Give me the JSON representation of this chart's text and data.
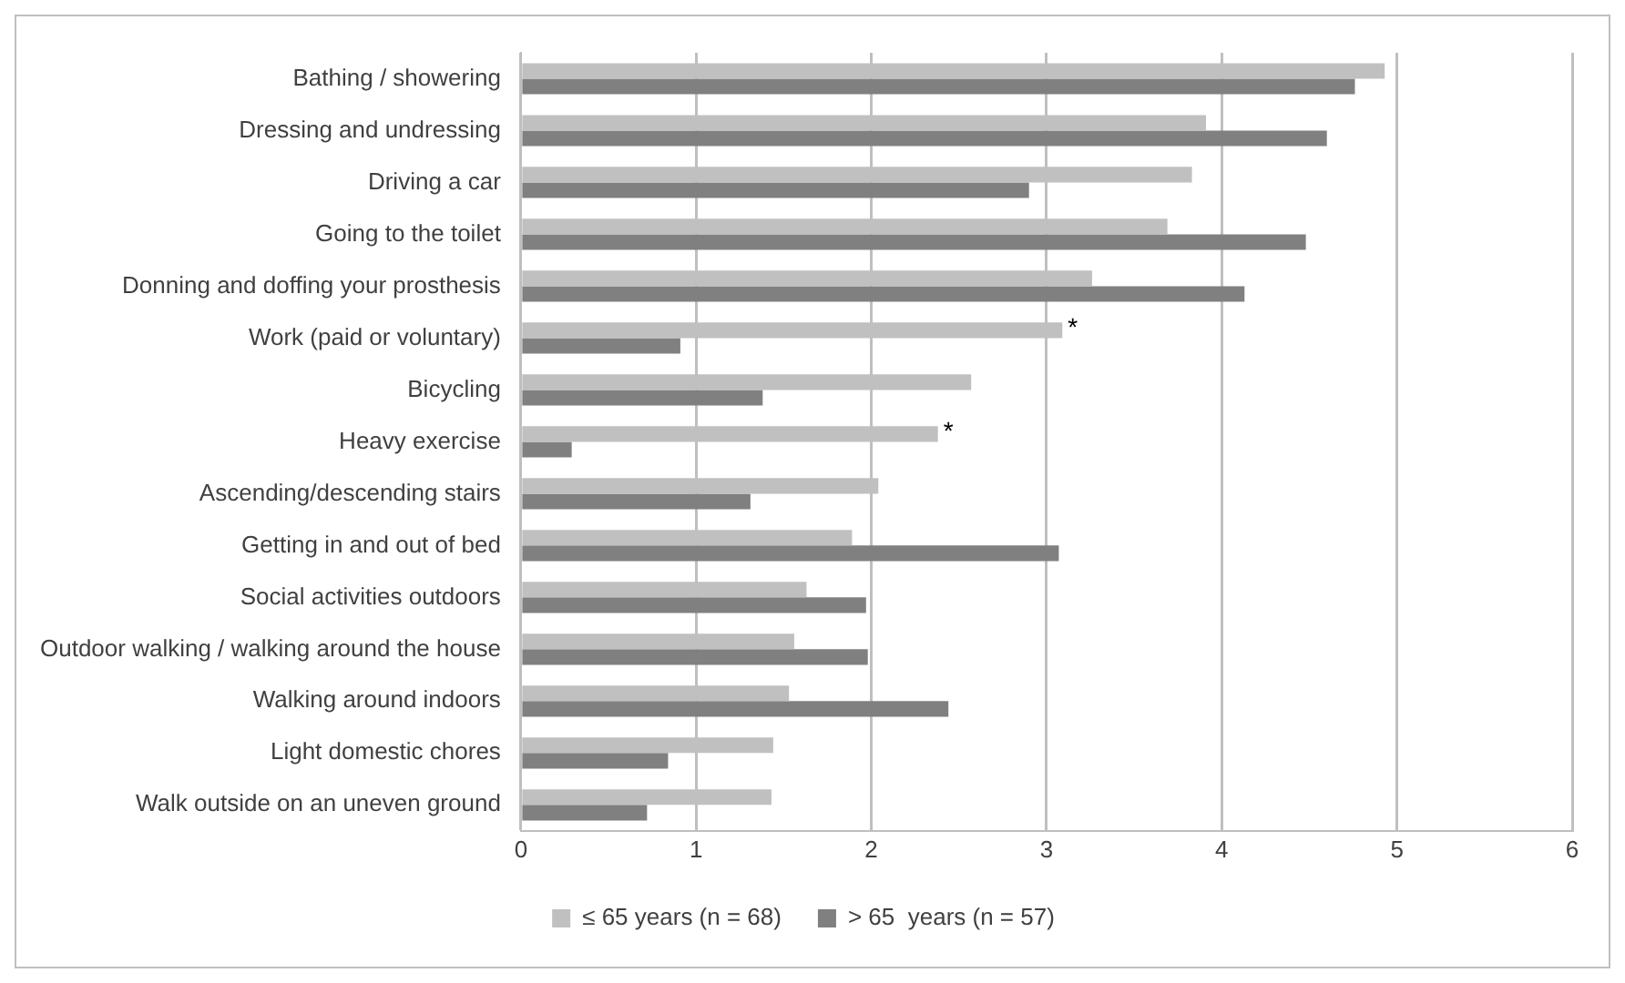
{
  "chart_data": {
    "type": "bar",
    "orientation": "horizontal",
    "categories": [
      "Bathing / showering",
      "Dressing and undressing",
      "Driving a car",
      "Going to the toilet",
      "Donning and doffing your prosthesis",
      "Work (paid or voluntary)",
      "Bicycling",
      "Heavy exercise",
      "Ascending/descending stairs",
      "Getting in and out of bed",
      "Social activities outdoors",
      "Outdoor walking / walking around the house",
      "Walking around indoors",
      "Light domestic chores",
      "Walk outside on an uneven ground"
    ],
    "series": [
      {
        "name": "≤ 65 years (n = 68)",
        "color": "#c0c0c0",
        "values": [
          4.93,
          3.91,
          3.83,
          3.69,
          3.26,
          3.09,
          2.57,
          2.38,
          2.04,
          1.89,
          1.63,
          1.56,
          1.53,
          1.44,
          1.43
        ]
      },
      {
        "name": "> 65  years (n = 57)",
        "color": "#808080",
        "values": [
          4.76,
          4.6,
          2.9,
          4.48,
          4.13,
          0.91,
          1.38,
          0.29,
          1.31,
          3.07,
          1.97,
          1.98,
          2.44,
          0.84,
          0.72
        ]
      }
    ],
    "xlim": [
      0,
      6
    ],
    "xticks": [
      0,
      1,
      2,
      3,
      4,
      5,
      6
    ],
    "grid": "x",
    "legend": "bottom",
    "annotations": [
      {
        "text": "*",
        "x": 3.09,
        "y": "Work (paid or voluntary)"
      },
      {
        "text": "*",
        "x": 2.38,
        "y": "Heavy exercise"
      }
    ]
  }
}
